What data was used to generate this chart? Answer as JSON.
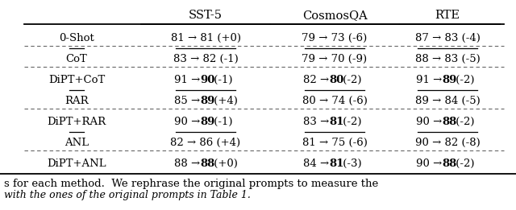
{
  "col_headers": [
    "SST-5",
    "CosmosQA",
    "RTE"
  ],
  "rows": [
    {
      "label": "0-Shot",
      "overline": false,
      "sst5": [
        "81",
        "81",
        "+0",
        false
      ],
      "cosmos": [
        "79",
        "73",
        "-6",
        false
      ],
      "rte": [
        "87",
        "83",
        "-4",
        false
      ]
    },
    {
      "label": "CoT",
      "overline": true,
      "sst5": [
        "83",
        "82",
        "-1",
        false
      ],
      "cosmos": [
        "79",
        "70",
        "-9",
        false
      ],
      "rte": [
        "88",
        "83",
        "-5",
        false
      ]
    },
    {
      "label": "DiPT+CoT",
      "overline": false,
      "sst5": [
        "91",
        "90",
        "-1",
        true
      ],
      "cosmos": [
        "82",
        "80",
        "-2",
        true
      ],
      "rte": [
        "91",
        "89",
        "-2",
        true
      ]
    },
    {
      "label": "RAR",
      "overline": true,
      "sst5": [
        "85",
        "89",
        "+4",
        true
      ],
      "cosmos": [
        "80",
        "74",
        "-6",
        false
      ],
      "rte": [
        "89",
        "84",
        "-5",
        false
      ]
    },
    {
      "label": "DiPT+RAR",
      "overline": false,
      "sst5": [
        "90",
        "89",
        "-1",
        true
      ],
      "cosmos": [
        "83",
        "81",
        "-2",
        true
      ],
      "rte": [
        "90",
        "88",
        "-2",
        true
      ]
    },
    {
      "label": "ANL",
      "overline": true,
      "sst5": [
        "82",
        "86",
        "+4",
        false
      ],
      "cosmos": [
        "81",
        "75",
        "-6",
        false
      ],
      "rte": [
        "90",
        "82",
        "-8",
        false
      ]
    },
    {
      "label": "DiPT+ANL",
      "overline": false,
      "sst5": [
        "88",
        "88",
        "+0",
        true
      ],
      "cosmos": [
        "84",
        "81",
        "-3",
        true
      ],
      "rte": [
        "90",
        "88",
        "-2",
        true
      ]
    }
  ],
  "dashed_after_rows": [
    0,
    1,
    3,
    5
  ],
  "footer_line1": "s for each method.  We rephrase the original prompts to measure the",
  "footer_line2": "with the ones of the original prompts in Table 1.",
  "bg_color": "#ffffff",
  "text_color": "#000000",
  "fs": 9.5,
  "hfs": 10.5
}
